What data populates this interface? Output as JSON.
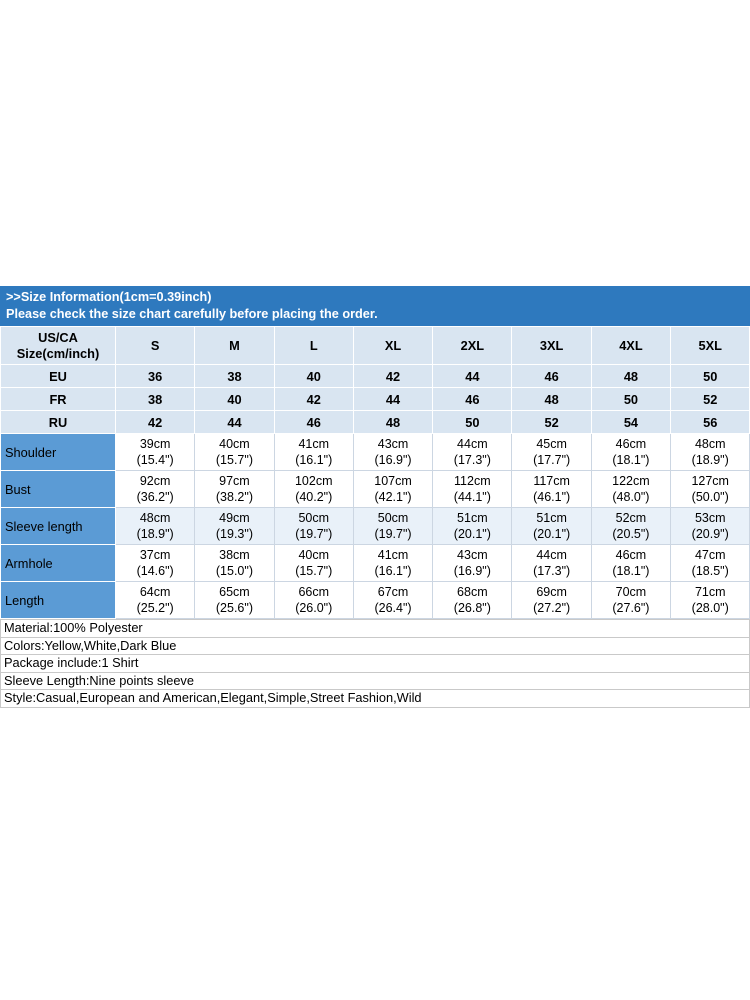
{
  "banner": {
    "line1": ">>Size Information(1cm=0.39inch)",
    "line2": "Please check the size chart carefully before placing the order."
  },
  "size_chart": {
    "corner_label": "US/CA\nSize(cm/inch)",
    "sizes": [
      "S",
      "M",
      "L",
      "XL",
      "2XL",
      "3XL",
      "4XL",
      "5XL"
    ],
    "region_rows": [
      {
        "label": "EU",
        "values": [
          "36",
          "38",
          "40",
          "42",
          "44",
          "46",
          "48",
          "50"
        ]
      },
      {
        "label": "FR",
        "values": [
          "38",
          "40",
          "42",
          "44",
          "46",
          "48",
          "50",
          "52"
        ]
      },
      {
        "label": "RU",
        "values": [
          "42",
          "44",
          "46",
          "48",
          "50",
          "52",
          "54",
          "56"
        ]
      }
    ],
    "measurement_rows": [
      {
        "label": "Shoulder",
        "values": [
          "39cm\n(15.4\")",
          "40cm\n(15.7\")",
          "41cm\n(16.1\")",
          "43cm\n(16.9\")",
          "44cm\n(17.3\")",
          "45cm\n(17.7\")",
          "46cm\n(18.1\")",
          "48cm\n(18.9\")"
        ]
      },
      {
        "label": "Bust",
        "values": [
          "92cm\n(36.2\")",
          "97cm\n(38.2\")",
          "102cm\n(40.2\")",
          "107cm\n(42.1\")",
          "112cm\n(44.1\")",
          "117cm\n(46.1\")",
          "122cm\n(48.0\")",
          "127cm\n(50.0\")"
        ]
      },
      {
        "label": "Sleeve length",
        "values": [
          "48cm\n(18.9\")",
          "49cm\n(19.3\")",
          "50cm\n(19.7\")",
          "50cm\n(19.7\")",
          "51cm\n(20.1\")",
          "51cm\n(20.1\")",
          "52cm\n(20.5\")",
          "53cm\n(20.9\")"
        ]
      },
      {
        "label": "Armhole",
        "values": [
          "37cm\n(14.6\")",
          "38cm\n(15.0\")",
          "40cm\n(15.7\")",
          "41cm\n(16.1\")",
          "43cm\n(16.9\")",
          "44cm\n(17.3\")",
          "46cm\n(18.1\")",
          "47cm\n(18.5\")"
        ]
      },
      {
        "label": "Length",
        "values": [
          "64cm\n(25.2\")",
          "65cm\n(25.6\")",
          "66cm\n(26.0\")",
          "67cm\n(26.4\")",
          "68cm\n(26.8\")",
          "69cm\n(27.2\")",
          "70cm\n(27.6\")",
          "71cm\n(28.0\")"
        ]
      }
    ]
  },
  "product_info": {
    "lines": [
      "Material:100% Polyester",
      "Colors:Yellow,White,Dark Blue",
      "Package include:1 Shirt",
      "Sleeve Length:Nine points sleeve",
      "Style:Casual,European and American,Elegant,Simple,Street Fashion,Wild"
    ]
  },
  "colors": {
    "banner_bg": "#2e79be",
    "header_row_bg": "#d9e5f1",
    "label_column_bg": "#5b9bd5",
    "tint_row_bg": "#e9f1f9",
    "banner_text": "#ffffff"
  }
}
